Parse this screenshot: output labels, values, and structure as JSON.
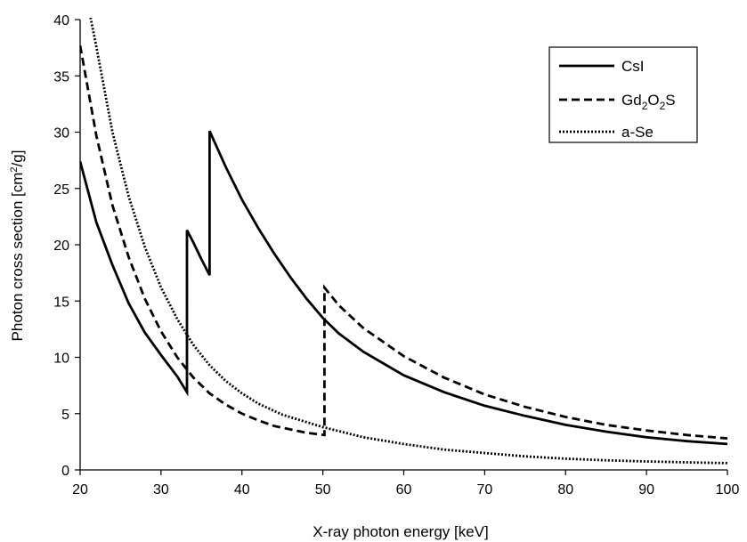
{
  "chart_data": {
    "type": "line",
    "title": "",
    "xlabel": "X-ray photon energy [keV]",
    "ylabel": "Photon cross section [cm²/g]",
    "xlim": [
      20,
      100
    ],
    "ylim": [
      0,
      40
    ],
    "xticks": [
      20,
      30,
      40,
      50,
      60,
      70,
      80,
      90,
      100
    ],
    "yticks": [
      0,
      5,
      10,
      15,
      20,
      25,
      30,
      35,
      40
    ],
    "grid": false,
    "legend_position": "top-right",
    "series": [
      {
        "name": "CsI",
        "style": "solid",
        "color": "#000000",
        "points": [
          [
            20,
            27.4
          ],
          [
            22,
            22.0
          ],
          [
            24,
            18.2
          ],
          [
            26,
            14.8
          ],
          [
            28,
            12.2
          ],
          [
            30,
            10.2
          ],
          [
            32,
            8.3
          ],
          [
            33.2,
            6.9
          ],
          [
            33.2,
            21.3
          ],
          [
            34,
            20.2
          ],
          [
            35,
            18.7
          ],
          [
            36,
            17.3
          ],
          [
            36,
            30.1
          ],
          [
            38,
            26.9
          ],
          [
            40,
            24.0
          ],
          [
            42,
            21.5
          ],
          [
            44,
            19.2
          ],
          [
            46,
            17.1
          ],
          [
            48,
            15.2
          ],
          [
            50,
            13.5
          ],
          [
            52,
            12.1
          ],
          [
            55,
            10.5
          ],
          [
            60,
            8.4
          ],
          [
            65,
            6.9
          ],
          [
            70,
            5.7
          ],
          [
            75,
            4.8
          ],
          [
            80,
            4.0
          ],
          [
            85,
            3.4
          ],
          [
            90,
            2.9
          ],
          [
            95,
            2.55
          ],
          [
            100,
            2.3
          ]
        ]
      },
      {
        "name": "Gd2O2S",
        "style": "dashed",
        "color": "#000000",
        "points": [
          [
            20,
            37.7
          ],
          [
            22,
            29.7
          ],
          [
            24,
            23.5
          ],
          [
            26,
            18.9
          ],
          [
            28,
            15.2
          ],
          [
            30,
            12.3
          ],
          [
            32,
            10.0
          ],
          [
            34,
            8.2
          ],
          [
            36,
            6.8
          ],
          [
            38,
            5.8
          ],
          [
            40,
            5.0
          ],
          [
            42,
            4.4
          ],
          [
            44,
            3.9
          ],
          [
            46,
            3.6
          ],
          [
            48,
            3.3
          ],
          [
            50.2,
            3.1
          ],
          [
            50.2,
            16.2
          ],
          [
            52,
            14.6
          ],
          [
            55,
            12.6
          ],
          [
            60,
            10.1
          ],
          [
            65,
            8.2
          ],
          [
            70,
            6.7
          ],
          [
            75,
            5.6
          ],
          [
            80,
            4.7
          ],
          [
            85,
            4.0
          ],
          [
            90,
            3.5
          ],
          [
            95,
            3.1
          ],
          [
            100,
            2.8
          ]
        ]
      },
      {
        "name": "a-Se",
        "style": "dotted",
        "color": "#000000",
        "points": [
          [
            21.2,
            40.5
          ],
          [
            22,
            37.6
          ],
          [
            24,
            30.0
          ],
          [
            26,
            24.3
          ],
          [
            28,
            19.8
          ],
          [
            30,
            16.2
          ],
          [
            32,
            13.4
          ],
          [
            34,
            11.1
          ],
          [
            36,
            9.3
          ],
          [
            38,
            7.9
          ],
          [
            40,
            6.8
          ],
          [
            42,
            5.9
          ],
          [
            45,
            4.9
          ],
          [
            50,
            3.8
          ],
          [
            55,
            2.9
          ],
          [
            60,
            2.3
          ],
          [
            65,
            1.8
          ],
          [
            70,
            1.5
          ],
          [
            75,
            1.2
          ],
          [
            80,
            1.0
          ],
          [
            85,
            0.85
          ],
          [
            90,
            0.75
          ],
          [
            95,
            0.67
          ],
          [
            100,
            0.6
          ]
        ]
      }
    ]
  }
}
